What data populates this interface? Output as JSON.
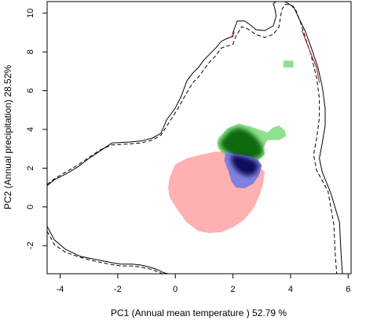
{
  "chart_data": {
    "type": "scatter",
    "title": "",
    "xlabel": "PC1 (Annual mean temperature ) 52.79 %",
    "ylabel": "PC2 (Annual precipitation) 28.52%",
    "xlim": [
      -4.45,
      6.1
    ],
    "ylim": [
      -3.45,
      10.6
    ],
    "x_ticks": [
      -4,
      -2,
      0,
      2,
      4,
      6
    ],
    "y_ticks": [
      -2,
      0,
      2,
      4,
      6,
      8,
      10
    ],
    "grid": false,
    "legend": "none",
    "colors": {
      "red_region": "#ffb0b0",
      "green_region": "#90e090",
      "green_dense": "#0a6a0a",
      "blue_region": "#8080e0",
      "blue_dense": "#10105a",
      "solid_boundary": "#000000",
      "dashed_boundary": "#000000",
      "red_boundary": "#c02020"
    },
    "regions": [
      {
        "color": "red",
        "x": [
          -0.2,
          0.0,
          0.4,
          0.9,
          1.4,
          1.8,
          2.3,
          2.8,
          3.1,
          3.05,
          2.9,
          2.7,
          2.4,
          2.0,
          1.6,
          1.2,
          0.8,
          0.4,
          0.1,
          -0.2,
          -0.25
        ],
        "y": [
          1.5,
          2.2,
          2.5,
          2.7,
          2.85,
          2.85,
          2.55,
          2.25,
          1.8,
          1.2,
          0.5,
          -0.1,
          -0.65,
          -1.05,
          -1.3,
          -1.35,
          -1.25,
          -0.8,
          -0.2,
          0.5,
          1.0
        ]
      },
      {
        "color": "green",
        "x": [
          1.5,
          1.8,
          2.2,
          2.6,
          3.0,
          3.2,
          3.4,
          3.6,
          3.8,
          3.85,
          3.6,
          3.2,
          3.05,
          3.1,
          2.9,
          2.5,
          2.1,
          1.7,
          1.5,
          1.45
        ],
        "y": [
          3.55,
          4.05,
          4.3,
          4.15,
          3.95,
          3.85,
          4.1,
          4.2,
          3.95,
          3.65,
          3.45,
          3.45,
          3.05,
          2.7,
          2.45,
          2.35,
          2.5,
          2.7,
          3.0,
          3.3
        ]
      },
      {
        "color": "green",
        "x": [
          3.75,
          4.1,
          4.1,
          3.75
        ],
        "y": [
          7.2,
          7.2,
          7.55,
          7.55
        ]
      },
      {
        "color": "green_dense",
        "x": [
          1.6,
          1.9,
          2.2,
          2.5,
          2.8,
          3.0,
          3.05,
          2.9,
          2.6,
          2.3,
          2.0,
          1.7,
          1.55
        ],
        "y": [
          3.45,
          3.95,
          4.1,
          3.95,
          3.6,
          3.2,
          2.8,
          2.55,
          2.45,
          2.5,
          2.65,
          2.9,
          3.2
        ]
      },
      {
        "color": "blue",
        "x": [
          1.75,
          2.0,
          2.3,
          2.6,
          2.85,
          3.0,
          2.9,
          2.7,
          2.4,
          2.1,
          1.95,
          1.85,
          1.7
        ],
        "y": [
          2.85,
          2.75,
          2.7,
          2.6,
          2.45,
          2.15,
          1.6,
          1.2,
          0.95,
          1.0,
          1.3,
          1.8,
          2.4
        ]
      },
      {
        "color": "blue_dense",
        "x": [
          1.95,
          2.2,
          2.5,
          2.75,
          2.9,
          2.8,
          2.55,
          2.3,
          2.1,
          1.95
        ],
        "y": [
          2.7,
          2.65,
          2.55,
          2.4,
          2.15,
          1.75,
          1.6,
          1.7,
          1.95,
          2.3
        ]
      }
    ],
    "boundaries": [
      {
        "style": "solid",
        "x": [
          -4.45,
          -4.2,
          -3.8,
          -3.4,
          -3.0,
          -2.6,
          -2.2,
          -1.6,
          -1.2,
          -0.8,
          -0.5,
          -0.3,
          0.0,
          0.2,
          0.4,
          0.6,
          0.8,
          1.0,
          1.2,
          1.4,
          1.6,
          1.8,
          2.0,
          2.0,
          2.15,
          2.4,
          2.6,
          2.8,
          3.1,
          3.4,
          3.5,
          3.45,
          3.4,
          3.5,
          3.8,
          4.1,
          4.3,
          4.5,
          4.7,
          4.95,
          5.1,
          5.2,
          5.2,
          5.1,
          5.0,
          5.1,
          5.4,
          5.7,
          5.75,
          5.8
        ],
        "y": [
          1.1,
          1.4,
          1.7,
          2.05,
          2.5,
          2.9,
          3.3,
          3.35,
          3.4,
          3.55,
          3.8,
          4.5,
          5.1,
          5.7,
          6.5,
          6.9,
          7.2,
          7.6,
          7.9,
          8.2,
          8.55,
          8.7,
          8.8,
          9.0,
          9.6,
          9.6,
          9.4,
          9.15,
          9.1,
          9.35,
          9.85,
          10.25,
          10.5,
          10.6,
          10.6,
          10.35,
          9.7,
          9.1,
          8.3,
          7.2,
          6.2,
          5.1,
          4.2,
          3.3,
          2.5,
          1.8,
          0.7,
          -0.8,
          -2.4,
          -3.45
        ]
      },
      {
        "style": "dashed",
        "x": [
          -4.45,
          -4.2,
          -3.8,
          -3.4,
          -3.0,
          -2.6,
          -2.2,
          -1.6,
          -1.2,
          -0.8,
          -0.5,
          -0.2,
          0.1,
          0.4,
          0.6,
          0.8,
          1.0,
          1.2,
          1.4,
          1.6,
          1.8,
          2.0,
          2.1,
          2.3,
          2.5,
          2.8,
          3.1,
          3.4,
          3.6,
          3.65,
          3.7,
          3.8,
          4.0,
          4.2,
          4.35,
          4.5,
          4.7,
          4.9,
          5.0,
          5.0,
          4.9,
          4.8,
          4.9,
          5.3,
          5.5,
          5.55,
          5.6
        ],
        "y": [
          1.15,
          1.45,
          1.8,
          2.15,
          2.55,
          2.95,
          3.2,
          3.25,
          3.3,
          3.45,
          3.7,
          4.4,
          5.1,
          5.9,
          6.4,
          6.7,
          7.1,
          7.5,
          7.8,
          8.2,
          8.3,
          8.4,
          8.8,
          9.3,
          9.2,
          8.9,
          8.75,
          8.9,
          9.3,
          9.8,
          10.2,
          10.45,
          10.45,
          10.1,
          9.5,
          8.8,
          7.9,
          6.7,
          5.6,
          4.6,
          3.5,
          2.7,
          1.9,
          0.8,
          -0.9,
          -2.4,
          -3.45
        ]
      },
      {
        "style": "solid",
        "x": [
          -4.45,
          -4.2,
          -3.8,
          -3.3,
          -2.8,
          -2.3,
          -1.9,
          -1.5,
          -1.2,
          -0.9,
          -0.6,
          -0.4,
          -0.25
        ],
        "y": [
          -1.0,
          -1.7,
          -2.2,
          -2.55,
          -2.7,
          -2.85,
          -2.95,
          -2.95,
          -3.0,
          -3.1,
          -3.25,
          -3.4,
          -3.45
        ]
      },
      {
        "style": "dashed",
        "x": [
          -4.45,
          -4.2,
          -3.8,
          -3.3,
          -2.8,
          -2.3,
          -1.9,
          -1.5,
          -1.2,
          -0.9,
          -0.6,
          -0.45
        ],
        "y": [
          -1.25,
          -1.95,
          -2.35,
          -2.6,
          -2.8,
          -2.95,
          -3.05,
          -3.05,
          -3.1,
          -3.2,
          -3.35,
          -3.45
        ]
      },
      {
        "style": "red",
        "x": [
          4.4,
          4.6,
          4.9,
          5.0
        ],
        "y": [
          9.1,
          8.3,
          7.2,
          6.4
        ]
      },
      {
        "style": "red",
        "x": [
          1.85,
          2.0,
          2.05
        ],
        "y": [
          8.7,
          8.85,
          9.05
        ]
      }
    ]
  }
}
